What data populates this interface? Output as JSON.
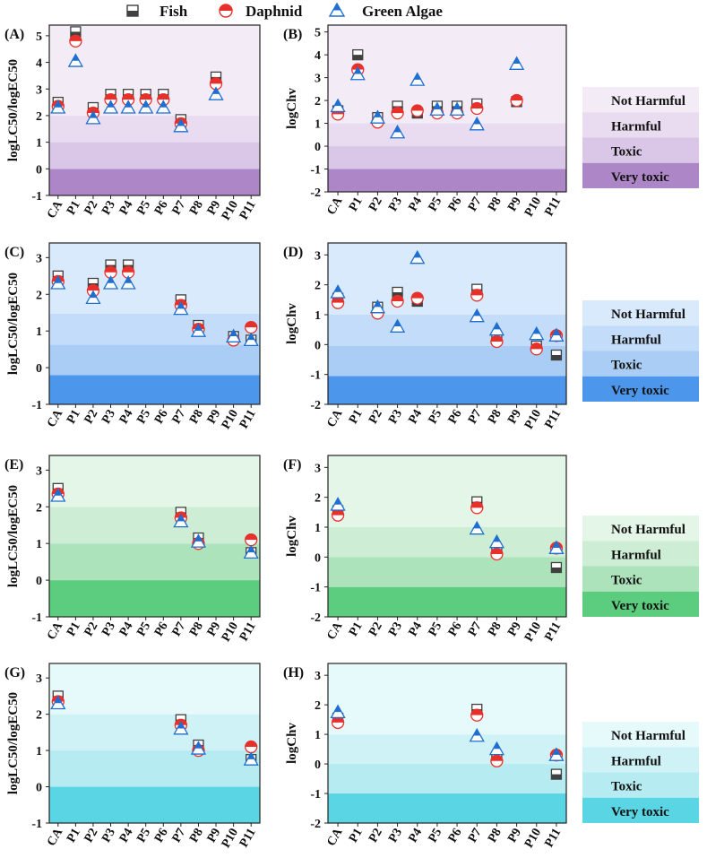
{
  "legend": {
    "entries": [
      {
        "label": "Fish",
        "marker": "half-square",
        "color": "#404040"
      },
      {
        "label": "Daphnid",
        "marker": "half-circle",
        "color": "#e8302b"
      },
      {
        "label": "Green Algae",
        "marker": "half-triangle",
        "color": "#1f6fd1"
      }
    ]
  },
  "categories": [
    "CA",
    "P1",
    "P2",
    "P3",
    "P4",
    "P5",
    "P6",
    "P7",
    "P8",
    "P9",
    "P10",
    "P11"
  ],
  "row_legends": [
    {
      "bands": [
        "Not Harmful",
        "Harmful",
        "Toxic",
        "Very toxic"
      ],
      "colors": [
        "#f3ecf7",
        "#eadcf0",
        "#dac6e6",
        "#ac86c6"
      ]
    },
    {
      "bands": [
        "Not Harmful",
        "Harmful",
        "Toxic",
        "Very toxic"
      ],
      "colors": [
        "#d9eafc",
        "#c3dcf9",
        "#a9cdf5",
        "#4c97ec"
      ]
    },
    {
      "bands": [
        "Not Harmful",
        "Harmful",
        "Toxic",
        "Very toxic"
      ],
      "colors": [
        "#e3f6e7",
        "#cdeed5",
        "#ade3bb",
        "#5ccd7e"
      ]
    },
    {
      "bands": [
        "Not Harmful",
        "Harmful",
        "Toxic",
        "Very toxic"
      ],
      "colors": [
        "#e6f9fb",
        "#cff2f6",
        "#b5ebf1",
        "#5ad5e3"
      ]
    }
  ],
  "chart_data": [
    {
      "panel": "(A)",
      "type": "scatter",
      "ylabel": "logLC50/logEC50",
      "ylim": [
        -1,
        5.4
      ],
      "yticks": [
        -1,
        0,
        1,
        2,
        3,
        4,
        5
      ],
      "bands": [
        [
          -1.2,
          0,
          "#ac86c6"
        ],
        [
          0,
          1,
          "#dac6e6"
        ],
        [
          1,
          2,
          "#eadcf0"
        ],
        [
          2,
          5.6,
          "#f3ecf7"
        ]
      ],
      "series": [
        {
          "name": "Fish",
          "values": [
            2.5,
            5.15,
            2.3,
            2.8,
            2.8,
            2.8,
            2.8,
            1.85,
            null,
            3.45,
            null,
            null
          ]
        },
        {
          "name": "Daphnid",
          "values": [
            2.35,
            4.8,
            2.1,
            2.6,
            2.6,
            2.6,
            2.6,
            1.7,
            null,
            3.2,
            null,
            null
          ]
        },
        {
          "name": "Green Algae",
          "values": [
            2.3,
            4.05,
            1.9,
            2.3,
            2.3,
            2.3,
            2.3,
            1.6,
            null,
            2.8,
            null,
            null
          ]
        }
      ]
    },
    {
      "panel": "(B)",
      "type": "scatter",
      "ylabel": "logChv",
      "ylim": [
        -2,
        5.3
      ],
      "yticks": [
        -2,
        -1,
        0,
        1,
        2,
        3,
        4,
        5
      ],
      "bands": [
        [
          -2.2,
          -1,
          "#ac86c6"
        ],
        [
          -1,
          0,
          "#dac6e6"
        ],
        [
          0,
          1,
          "#eadcf0"
        ],
        [
          1,
          5.5,
          "#f3ecf7"
        ]
      ],
      "series": [
        {
          "name": "Fish",
          "values": [
            1.55,
            4.0,
            1.25,
            1.75,
            1.45,
            1.75,
            1.75,
            1.85,
            null,
            1.95,
            null,
            null
          ]
        },
        {
          "name": "Daphnid",
          "values": [
            1.4,
            3.35,
            1.05,
            1.45,
            1.55,
            1.45,
            1.45,
            1.65,
            null,
            2.0,
            null,
            null
          ]
        },
        {
          "name": "Green Algae",
          "values": [
            1.75,
            3.15,
            1.25,
            0.6,
            2.9,
            1.6,
            1.6,
            0.95,
            null,
            3.6,
            null,
            null
          ]
        }
      ]
    },
    {
      "panel": "(C)",
      "type": "scatter",
      "ylabel": "logLC50/logEC50",
      "ylim": [
        -1,
        3.4
      ],
      "yticks": [
        -1,
        0,
        1,
        2,
        3
      ],
      "bands": [
        [
          -1.2,
          -0.2,
          "#4c97ec"
        ],
        [
          -0.2,
          0.63,
          "#a9cdf5"
        ],
        [
          0.63,
          1.47,
          "#c3dcf9"
        ],
        [
          1.47,
          3.6,
          "#d9eafc"
        ]
      ],
      "series": [
        {
          "name": "Fish",
          "values": [
            2.5,
            null,
            2.3,
            2.8,
            2.8,
            null,
            null,
            1.85,
            1.15,
            null,
            0.85,
            0.75
          ]
        },
        {
          "name": "Daphnid",
          "values": [
            2.35,
            null,
            2.1,
            2.6,
            2.6,
            null,
            null,
            1.7,
            1.05,
            null,
            0.75,
            1.1
          ]
        },
        {
          "name": "Green Algae",
          "values": [
            2.3,
            null,
            1.9,
            2.3,
            2.3,
            null,
            null,
            1.6,
            1.0,
            null,
            0.85,
            0.75
          ]
        }
      ]
    },
    {
      "panel": "(D)",
      "type": "scatter",
      "ylabel": "logChv",
      "ylim": [
        -2,
        3.4
      ],
      "yticks": [
        -2,
        -1,
        0,
        1,
        2,
        3
      ],
      "bands": [
        [
          -2.2,
          -1.05,
          "#4c97ec"
        ],
        [
          -1.05,
          -0.05,
          "#a9cdf5"
        ],
        [
          -0.05,
          1.0,
          "#c3dcf9"
        ],
        [
          1.0,
          3.6,
          "#d9eafc"
        ]
      ],
      "series": [
        {
          "name": "Fish",
          "values": [
            1.55,
            null,
            1.25,
            1.75,
            1.45,
            null,
            null,
            1.85,
            0.2,
            null,
            -0.05,
            -0.35
          ]
        },
        {
          "name": "Daphnid",
          "values": [
            1.4,
            null,
            1.05,
            1.45,
            1.55,
            null,
            null,
            1.65,
            0.1,
            null,
            -0.15,
            0.3
          ]
        },
        {
          "name": "Green Algae",
          "values": [
            1.75,
            null,
            1.25,
            0.6,
            2.9,
            null,
            null,
            0.95,
            0.5,
            null,
            0.35,
            0.3
          ]
        }
      ]
    },
    {
      "panel": "(E)",
      "type": "scatter",
      "ylabel": "logLC50/logEC50",
      "ylim": [
        -1,
        3.4
      ],
      "yticks": [
        -1,
        0,
        1,
        2,
        3
      ],
      "bands": [
        [
          -1.2,
          0,
          "#5ccd7e"
        ],
        [
          0,
          1,
          "#ade3bb"
        ],
        [
          1,
          2,
          "#cdeed5"
        ],
        [
          2,
          3.6,
          "#e3f6e7"
        ]
      ],
      "series": [
        {
          "name": "Fish",
          "values": [
            2.5,
            null,
            null,
            null,
            null,
            null,
            null,
            1.85,
            1.15,
            null,
            null,
            0.75
          ]
        },
        {
          "name": "Daphnid",
          "values": [
            2.35,
            null,
            null,
            null,
            null,
            null,
            null,
            1.7,
            1.0,
            null,
            null,
            1.1
          ]
        },
        {
          "name": "Green Algae",
          "values": [
            2.3,
            null,
            null,
            null,
            null,
            null,
            null,
            1.6,
            1.05,
            null,
            null,
            0.75
          ]
        }
      ]
    },
    {
      "panel": "(F)",
      "type": "scatter",
      "ylabel": "logChv",
      "ylim": [
        -2,
        3.4
      ],
      "yticks": [
        -2,
        -1,
        0,
        1,
        2,
        3
      ],
      "bands": [
        [
          -2.2,
          -1,
          "#5ccd7e"
        ],
        [
          -1,
          0,
          "#ade3bb"
        ],
        [
          0,
          1,
          "#cdeed5"
        ],
        [
          1,
          3.6,
          "#e3f6e7"
        ]
      ],
      "series": [
        {
          "name": "Fish",
          "values": [
            1.55,
            null,
            null,
            null,
            null,
            null,
            null,
            1.85,
            0.2,
            null,
            null,
            -0.35
          ]
        },
        {
          "name": "Daphnid",
          "values": [
            1.4,
            null,
            null,
            null,
            null,
            null,
            null,
            1.65,
            0.1,
            null,
            null,
            0.3
          ]
        },
        {
          "name": "Green Algae",
          "values": [
            1.75,
            null,
            null,
            null,
            null,
            null,
            null,
            0.95,
            0.5,
            null,
            null,
            0.3
          ]
        }
      ]
    },
    {
      "panel": "(G)",
      "type": "scatter",
      "ylabel": "logLC50/logEC50",
      "ylim": [
        -1,
        3.4
      ],
      "yticks": [
        -1,
        0,
        1,
        2,
        3
      ],
      "bands": [
        [
          -1.2,
          0,
          "#5ad5e3"
        ],
        [
          0,
          1,
          "#b5ebf1"
        ],
        [
          1,
          2,
          "#cff2f6"
        ],
        [
          2,
          3.6,
          "#e6f9fb"
        ]
      ],
      "series": [
        {
          "name": "Fish",
          "values": [
            2.5,
            null,
            null,
            null,
            null,
            null,
            null,
            1.85,
            1.15,
            null,
            null,
            0.75
          ]
        },
        {
          "name": "Daphnid",
          "values": [
            2.35,
            null,
            null,
            null,
            null,
            null,
            null,
            1.7,
            1.0,
            null,
            null,
            1.1
          ]
        },
        {
          "name": "Green Algae",
          "values": [
            2.3,
            null,
            null,
            null,
            null,
            null,
            null,
            1.6,
            1.05,
            null,
            null,
            0.75
          ]
        }
      ]
    },
    {
      "panel": "(H)",
      "type": "scatter",
      "ylabel": "logChv",
      "ylim": [
        -2,
        3.4
      ],
      "yticks": [
        -2,
        -1,
        0,
        1,
        2,
        3
      ],
      "bands": [
        [
          -2.2,
          -1,
          "#5ad5e3"
        ],
        [
          -1,
          0,
          "#b5ebf1"
        ],
        [
          0,
          1,
          "#cff2f6"
        ],
        [
          1,
          3.6,
          "#e6f9fb"
        ]
      ],
      "series": [
        {
          "name": "Fish",
          "values": [
            1.55,
            null,
            null,
            null,
            null,
            null,
            null,
            1.85,
            0.2,
            null,
            null,
            -0.35
          ]
        },
        {
          "name": "Daphnid",
          "values": [
            1.4,
            null,
            null,
            null,
            null,
            null,
            null,
            1.65,
            0.1,
            null,
            null,
            0.3
          ]
        },
        {
          "name": "Green Algae",
          "values": [
            1.75,
            null,
            null,
            null,
            null,
            null,
            null,
            0.95,
            0.5,
            null,
            null,
            0.3
          ]
        }
      ]
    }
  ]
}
